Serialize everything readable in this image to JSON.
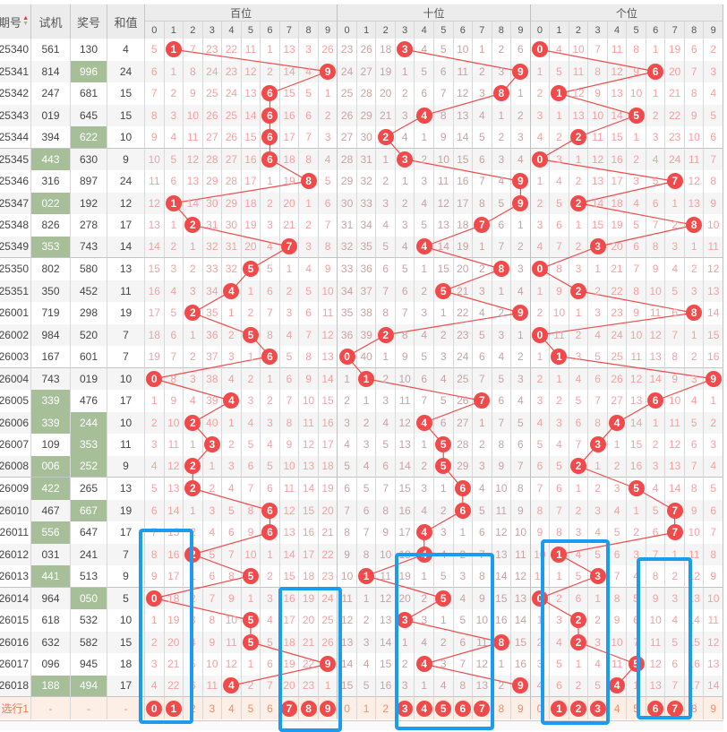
{
  "header": {
    "issue": "期号",
    "test": "试机",
    "prize": "奖号",
    "sum": "和值",
    "groups": [
      "百位",
      "十位",
      "个位"
    ],
    "digits": [
      "0",
      "1",
      "2",
      "3",
      "4",
      "5",
      "6",
      "7",
      "8",
      "9"
    ],
    "sort_icon": "sort-up-down-icon"
  },
  "colors": {
    "ball": "#f24a4a",
    "pair_cell": "#a6bf99",
    "annotation_box": "#1a9cf0",
    "miss_hundreds": "#f5a0a0",
    "miss_tens": "#c9a2a2",
    "miss_units": "#f5a0a0"
  },
  "rows": [
    {
      "issue": "25340",
      "test": "561",
      "prize": "130",
      "sum": "4",
      "test_pair": false,
      "prize_pair": false,
      "h": [
        5,
        0,
        7,
        23,
        22,
        11,
        1,
        13,
        3,
        26
      ],
      "t": [
        23,
        26,
        18,
        0,
        4,
        5,
        10,
        1,
        2,
        6
      ],
      "u": [
        0,
        4,
        10,
        7,
        11,
        8,
        1,
        19,
        6,
        2
      ]
    },
    {
      "issue": "25341",
      "test": "814",
      "prize": "996",
      "sum": "24",
      "test_pair": false,
      "prize_pair": true,
      "h": [
        6,
        1,
        8,
        24,
        23,
        12,
        2,
        14,
        4,
        0
      ],
      "t": [
        24,
        27,
        19,
        1,
        5,
        6,
        11,
        2,
        3,
        0
      ],
      "u": [
        1,
        5,
        11,
        8,
        12,
        9,
        0,
        20,
        7,
        3
      ]
    },
    {
      "issue": "25342",
      "test": "247",
      "prize": "681",
      "sum": "15",
      "test_pair": false,
      "prize_pair": false,
      "h": [
        7,
        2,
        9,
        25,
        24,
        13,
        0,
        15,
        5,
        1
      ],
      "t": [
        25,
        28,
        20,
        2,
        6,
        7,
        12,
        3,
        0,
        1
      ],
      "u": [
        2,
        0,
        12,
        9,
        13,
        10,
        1,
        21,
        8,
        4
      ]
    },
    {
      "issue": "25343",
      "test": "019",
      "prize": "645",
      "sum": "15",
      "test_pair": false,
      "prize_pair": false,
      "h": [
        8,
        3,
        10,
        26,
        25,
        14,
        0,
        16,
        6,
        2
      ],
      "t": [
        26,
        29,
        21,
        3,
        0,
        8,
        13,
        4,
        1,
        2
      ],
      "u": [
        3,
        1,
        13,
        10,
        14,
        0,
        2,
        22,
        9,
        5
      ]
    },
    {
      "issue": "25344",
      "test": "394",
      "prize": "622",
      "sum": "10",
      "test_pair": false,
      "prize_pair": true,
      "h": [
        9,
        4,
        11,
        27,
        26,
        15,
        0,
        17,
        7,
        3
      ],
      "t": [
        27,
        30,
        0,
        4,
        1,
        9,
        14,
        5,
        2,
        3
      ],
      "u": [
        4,
        2,
        0,
        11,
        15,
        1,
        3,
        23,
        10,
        6
      ]
    },
    {
      "issue": "25345",
      "test": "443",
      "prize": "630",
      "sum": "9",
      "test_pair": true,
      "prize_pair": false,
      "h": [
        10,
        5,
        12,
        28,
        27,
        16,
        0,
        18,
        8,
        4
      ],
      "t": [
        28,
        31,
        1,
        0,
        2,
        10,
        15,
        6,
        3,
        4
      ],
      "u": [
        0,
        3,
        1,
        12,
        16,
        2,
        4,
        24,
        11,
        7
      ]
    },
    {
      "issue": "25346",
      "test": "316",
      "prize": "897",
      "sum": "24",
      "test_pair": false,
      "prize_pair": false,
      "h": [
        11,
        6,
        13,
        29,
        28,
        17,
        1,
        19,
        0,
        5
      ],
      "t": [
        29,
        32,
        2,
        1,
        3,
        11,
        16,
        7,
        4,
        0
      ],
      "u": [
        1,
        4,
        2,
        13,
        17,
        3,
        5,
        0,
        12,
        8
      ]
    },
    {
      "issue": "25347",
      "test": "022",
      "prize": "192",
      "sum": "12",
      "test_pair": true,
      "prize_pair": false,
      "h": [
        12,
        0,
        14,
        30,
        29,
        18,
        2,
        20,
        1,
        6
      ],
      "t": [
        30,
        33,
        3,
        2,
        4,
        12,
        17,
        8,
        5,
        0
      ],
      "u": [
        2,
        5,
        0,
        14,
        18,
        4,
        6,
        1,
        13,
        9
      ]
    },
    {
      "issue": "25348",
      "test": "826",
      "prize": "278",
      "sum": "17",
      "test_pair": false,
      "prize_pair": false,
      "h": [
        13,
        1,
        0,
        31,
        30,
        19,
        3,
        21,
        2,
        7
      ],
      "t": [
        31,
        34,
        4,
        3,
        5,
        13,
        18,
        0,
        6,
        1
      ],
      "u": [
        3,
        6,
        1,
        15,
        19,
        5,
        7,
        2,
        0,
        10
      ]
    },
    {
      "issue": "25349",
      "test": "353",
      "prize": "743",
      "sum": "14",
      "test_pair": true,
      "prize_pair": false,
      "h": [
        14,
        2,
        1,
        32,
        31,
        20,
        4,
        0,
        3,
        8
      ],
      "t": [
        32,
        35,
        5,
        4,
        0,
        14,
        19,
        1,
        7,
        2
      ],
      "u": [
        4,
        7,
        2,
        0,
        20,
        6,
        8,
        3,
        1,
        11
      ]
    },
    {
      "issue": "25350",
      "test": "802",
      "prize": "580",
      "sum": "13",
      "test_pair": false,
      "prize_pair": false,
      "h": [
        15,
        3,
        2,
        33,
        32,
        0,
        5,
        1,
        4,
        9
      ],
      "t": [
        33,
        36,
        6,
        5,
        1,
        15,
        20,
        2,
        0,
        3
      ],
      "u": [
        0,
        8,
        3,
        1,
        21,
        7,
        9,
        4,
        2,
        12
      ]
    },
    {
      "issue": "25351",
      "test": "350",
      "prize": "452",
      "sum": "11",
      "test_pair": false,
      "prize_pair": false,
      "h": [
        16,
        4,
        3,
        34,
        0,
        1,
        6,
        2,
        5,
        10
      ],
      "t": [
        34,
        37,
        7,
        6,
        2,
        0,
        21,
        3,
        1,
        4
      ],
      "u": [
        1,
        9,
        0,
        2,
        22,
        8,
        10,
        5,
        3,
        13
      ]
    },
    {
      "issue": "26001",
      "test": "719",
      "prize": "298",
      "sum": "19",
      "test_pair": false,
      "prize_pair": false,
      "h": [
        17,
        5,
        0,
        35,
        1,
        2,
        7,
        3,
        6,
        11
      ],
      "t": [
        35,
        38,
        8,
        7,
        3,
        1,
        22,
        4,
        2,
        0
      ],
      "u": [
        2,
        10,
        1,
        3,
        23,
        9,
        11,
        6,
        0,
        14
      ]
    },
    {
      "issue": "26002",
      "test": "984",
      "prize": "520",
      "sum": "7",
      "test_pair": false,
      "prize_pair": false,
      "h": [
        18,
        6,
        1,
        36,
        2,
        0,
        8,
        4,
        7,
        12
      ],
      "t": [
        36,
        39,
        0,
        8,
        4,
        2,
        23,
        5,
        3,
        1
      ],
      "u": [
        0,
        11,
        2,
        4,
        24,
        10,
        12,
        7,
        1,
        15
      ]
    },
    {
      "issue": "26003",
      "test": "167",
      "prize": "601",
      "sum": "7",
      "test_pair": false,
      "prize_pair": false,
      "h": [
        19,
        7,
        2,
        37,
        3,
        1,
        0,
        5,
        8,
        13
      ],
      "t": [
        0,
        40,
        1,
        9,
        5,
        3,
        24,
        6,
        4,
        2
      ],
      "u": [
        1,
        0,
        3,
        5,
        25,
        11,
        13,
        8,
        2,
        16
      ]
    },
    {
      "issue": "26004",
      "test": "743",
      "prize": "019",
      "sum": "10",
      "test_pair": false,
      "prize_pair": false,
      "h": [
        0,
        8,
        3,
        38,
        4,
        2,
        1,
        6,
        9,
        14
      ],
      "t": [
        1,
        0,
        2,
        10,
        6,
        4,
        25,
        7,
        5,
        3
      ],
      "u": [
        2,
        1,
        4,
        6,
        26,
        12,
        14,
        9,
        3,
        0
      ]
    },
    {
      "issue": "26005",
      "test": "339",
      "prize": "476",
      "sum": "17",
      "test_pair": true,
      "prize_pair": false,
      "h": [
        1,
        9,
        4,
        39,
        0,
        3,
        2,
        7,
        10,
        15
      ],
      "t": [
        2,
        1,
        3,
        11,
        7,
        5,
        26,
        0,
        6,
        4
      ],
      "u": [
        3,
        2,
        5,
        7,
        27,
        13,
        0,
        10,
        4,
        1
      ]
    },
    {
      "issue": "26006",
      "test": "339",
      "prize": "244",
      "sum": "10",
      "test_pair": true,
      "prize_pair": true,
      "h": [
        2,
        10,
        0,
        40,
        1,
        4,
        3,
        8,
        11,
        16
      ],
      "t": [
        3,
        2,
        4,
        12,
        0,
        6,
        27,
        1,
        7,
        5
      ],
      "u": [
        4,
        3,
        6,
        8,
        0,
        14,
        1,
        11,
        5,
        2
      ]
    },
    {
      "issue": "26007",
      "test": "109",
      "prize": "353",
      "sum": "11",
      "test_pair": false,
      "prize_pair": true,
      "h": [
        3,
        11,
        1,
        0,
        2,
        5,
        4,
        9,
        12,
        17
      ],
      "t": [
        4,
        3,
        5,
        13,
        1,
        0,
        28,
        2,
        8,
        6
      ],
      "u": [
        5,
        4,
        7,
        0,
        1,
        15,
        2,
        12,
        6,
        3
      ]
    },
    {
      "issue": "26008",
      "test": "006",
      "prize": "252",
      "sum": "9",
      "test_pair": true,
      "prize_pair": true,
      "h": [
        4,
        12,
        0,
        1,
        3,
        6,
        5,
        10,
        13,
        18
      ],
      "t": [
        5,
        4,
        6,
        14,
        2,
        0,
        29,
        3,
        9,
        7
      ],
      "u": [
        6,
        5,
        0,
        1,
        2,
        16,
        3,
        13,
        7,
        4
      ]
    },
    {
      "issue": "26009",
      "test": "422",
      "prize": "265",
      "sum": "13",
      "test_pair": true,
      "prize_pair": false,
      "h": [
        5,
        13,
        0,
        2,
        4,
        7,
        6,
        11,
        14,
        19
      ],
      "t": [
        6,
        5,
        7,
        15,
        3,
        1,
        0,
        4,
        10,
        8
      ],
      "u": [
        7,
        6,
        1,
        2,
        3,
        0,
        4,
        14,
        8,
        5
      ]
    },
    {
      "issue": "26010",
      "test": "467",
      "prize": "667",
      "sum": "19",
      "test_pair": false,
      "prize_pair": true,
      "h": [
        6,
        14,
        1,
        3,
        5,
        8,
        0,
        12,
        15,
        20
      ],
      "t": [
        7,
        6,
        8,
        16,
        4,
        2,
        0,
        5,
        11,
        9
      ],
      "u": [
        8,
        7,
        2,
        3,
        4,
        1,
        5,
        0,
        9,
        6
      ]
    },
    {
      "issue": "26011",
      "test": "556",
      "prize": "647",
      "sum": "17",
      "test_pair": true,
      "prize_pair": false,
      "h": [
        7,
        15,
        2,
        4,
        6,
        9,
        0,
        13,
        16,
        21
      ],
      "t": [
        8,
        7,
        9,
        17,
        0,
        3,
        1,
        6,
        12,
        10
      ],
      "u": [
        9,
        8,
        3,
        4,
        5,
        2,
        6,
        0,
        10,
        7
      ]
    },
    {
      "issue": "26012",
      "test": "031",
      "prize": "241",
      "sum": "7",
      "test_pair": false,
      "prize_pair": false,
      "h": [
        8,
        16,
        0,
        5,
        7,
        10,
        1,
        14,
        17,
        22
      ],
      "t": [
        9,
        8,
        10,
        18,
        0,
        4,
        2,
        7,
        13,
        11
      ],
      "u": [
        10,
        0,
        4,
        5,
        6,
        3,
        7,
        1,
        11,
        8
      ]
    },
    {
      "issue": "26013",
      "test": "441",
      "prize": "513",
      "sum": "9",
      "test_pair": true,
      "prize_pair": false,
      "h": [
        9,
        17,
        1,
        6,
        8,
        0,
        2,
        15,
        18,
        23
      ],
      "t": [
        10,
        0,
        11,
        19,
        1,
        5,
        3,
        8,
        14,
        12
      ],
      "u": [
        11,
        1,
        5,
        0,
        7,
        4,
        8,
        2,
        12,
        9
      ]
    },
    {
      "issue": "26014",
      "test": "964",
      "prize": "050",
      "sum": "5",
      "test_pair": false,
      "prize_pair": true,
      "h": [
        0,
        18,
        2,
        7,
        9,
        1,
        3,
        16,
        19,
        24
      ],
      "t": [
        11,
        1,
        12,
        20,
        2,
        0,
        4,
        9,
        15,
        13
      ],
      "u": [
        0,
        2,
        6,
        1,
        8,
        5,
        9,
        3,
        13,
        10
      ]
    },
    {
      "issue": "26015",
      "test": "618",
      "prize": "532",
      "sum": "10",
      "test_pair": false,
      "prize_pair": false,
      "h": [
        1,
        19,
        3,
        8,
        10,
        0,
        4,
        17,
        20,
        25
      ],
      "t": [
        12,
        2,
        13,
        0,
        3,
        1,
        5,
        10,
        16,
        14
      ],
      "u": [
        1,
        3,
        0,
        2,
        9,
        6,
        10,
        4,
        14,
        11
      ]
    },
    {
      "issue": "26016",
      "test": "632",
      "prize": "582",
      "sum": "15",
      "test_pair": false,
      "prize_pair": false,
      "h": [
        2,
        20,
        4,
        9,
        11,
        0,
        5,
        18,
        21,
        26
      ],
      "t": [
        13,
        3,
        14,
        1,
        4,
        2,
        6,
        11,
        0,
        15
      ],
      "u": [
        2,
        4,
        0,
        3,
        10,
        7,
        11,
        5,
        15,
        12
      ]
    },
    {
      "issue": "26017",
      "test": "096",
      "prize": "945",
      "sum": "18",
      "test_pair": false,
      "prize_pair": false,
      "h": [
        3,
        21,
        5,
        10,
        12,
        1,
        6,
        19,
        22,
        0
      ],
      "t": [
        14,
        4,
        15,
        2,
        0,
        3,
        7,
        12,
        1,
        16
      ],
      "u": [
        3,
        5,
        1,
        4,
        11,
        0,
        12,
        6,
        16,
        13
      ]
    },
    {
      "issue": "26018",
      "test": "188",
      "prize": "494",
      "sum": "17",
      "test_pair": true,
      "prize_pair": true,
      "h": [
        4,
        22,
        6,
        11,
        0,
        2,
        7,
        20,
        23,
        1
      ],
      "t": [
        15,
        5,
        16,
        3,
        1,
        4,
        8,
        13,
        2,
        0
      ],
      "u": [
        4,
        6,
        2,
        5,
        0,
        1,
        13,
        7,
        17,
        14
      ]
    }
  ],
  "footer": {
    "label": "选行1",
    "dash": "-",
    "selected": {
      "h": [
        0,
        1,
        7,
        8,
        9
      ],
      "t": [
        3,
        4,
        5,
        6,
        7
      ],
      "u": [
        1,
        2,
        3,
        6,
        7
      ]
    }
  }
}
